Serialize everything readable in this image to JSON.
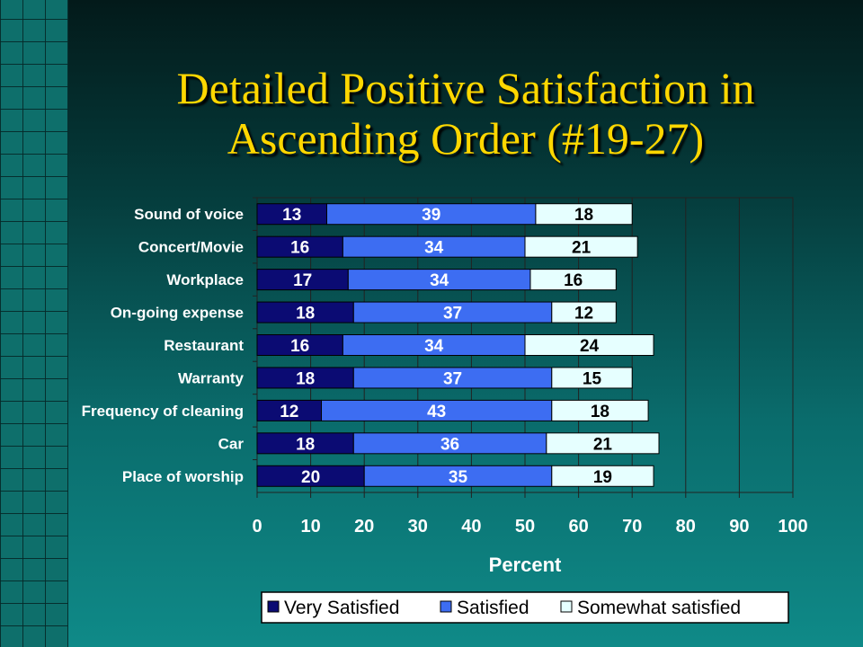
{
  "slide": {
    "title_line1": "Detailed Positive Satisfaction in",
    "title_line2": "Ascending Order (#19-27)"
  },
  "chart_data": {
    "type": "bar",
    "orientation": "horizontal",
    "stacked": true,
    "categories": [
      "Sound of voice",
      "Concert/Movie",
      "Workplace",
      "On-going expense",
      "Restaurant",
      "Warranty",
      "Frequency of cleaning",
      "Car",
      "Place of worship"
    ],
    "series": [
      {
        "name": "Very Satisfied",
        "color": "#0b0b73",
        "label_color": "#ffffff",
        "values": [
          13,
          16,
          17,
          18,
          16,
          18,
          12,
          18,
          20
        ]
      },
      {
        "name": "Satisfied",
        "color": "#3d6df2",
        "label_color": "#ffffff",
        "values": [
          39,
          34,
          34,
          37,
          34,
          37,
          43,
          36,
          35
        ]
      },
      {
        "name": "Somewhat satisfied",
        "color": "#e6ffff",
        "label_color": "#000000",
        "values": [
          18,
          21,
          16,
          12,
          24,
          15,
          18,
          21,
          19
        ]
      }
    ],
    "xlabel": "Percent",
    "xlim": [
      0,
      100
    ],
    "xticks": [
      "0",
      "10",
      "20",
      "30",
      "40",
      "50",
      "60",
      "70",
      "80",
      "90",
      "100"
    ],
    "grid": "vertical",
    "legend": "bottom"
  }
}
